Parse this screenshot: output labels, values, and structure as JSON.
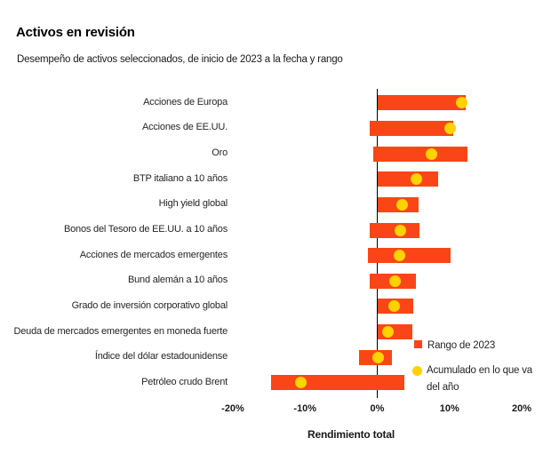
{
  "header": {
    "title": "Activos en revisión",
    "subtitle": "Desempeño de activos seleccionados, de inicio de 2023 a la fecha y rango"
  },
  "chart_data": {
    "type": "bar",
    "subtype": "horizontal-range-bars-with-ytd-markers",
    "title": "Activos en revisión",
    "xlabel": "Rendimiento total",
    "xlim": [
      -20,
      20
    ],
    "grid": false,
    "legend_position": "right-bottom",
    "x_ticks": [
      {
        "value": -20,
        "label": "-20%"
      },
      {
        "value": -10,
        "label": "-10%"
      },
      {
        "value": 0,
        "label": "0%"
      },
      {
        "value": 10,
        "label": "10%"
      },
      {
        "value": 20,
        "label": "20%"
      }
    ],
    "categories": [
      "Acciones de Europa",
      "Acciones de EE.UU.",
      "Oro",
      "BTP italiano a 10 años",
      "High yield global",
      "Bonos del Tesoro de EE.UU. a 10 años",
      "Acciones de mercados emergentes",
      "Bund alemán a 10 años",
      "Grado de inversión corporativo global",
      "Deuda de mercados emergentes en moneda fuerte",
      "Índice del dólar estadounidense",
      "Petróleo crudo Brent"
    ],
    "series": [
      {
        "name": "Rango de 2023",
        "type": "range",
        "unit": "%",
        "low": [
          0,
          -1.0,
          -0.5,
          0,
          0,
          -1.1,
          -1.3,
          -1.0,
          0,
          0,
          -2.5,
          -14.7
        ],
        "high": [
          12.2,
          10.5,
          12.5,
          8.4,
          5.7,
          5.8,
          10.1,
          5.3,
          5.0,
          4.9,
          2.0,
          3.8
        ]
      },
      {
        "name": "Acumulado en lo que va del año",
        "type": "marker",
        "unit": "%",
        "values": [
          11.7,
          10.1,
          7.5,
          5.4,
          3.4,
          3.2,
          3.1,
          2.5,
          2.3,
          1.5,
          0.1,
          -10.6
        ]
      }
    ],
    "legend": {
      "items": [
        {
          "label": "Rango de 2023",
          "marker": "square"
        },
        {
          "label_line1": "Acumulado en lo que va",
          "label_line2": "del año",
          "marker": "circle"
        }
      ]
    }
  },
  "colors": {
    "background": "#ffffff",
    "bar": "#fa4616",
    "marker": "#ffd200",
    "axis_line": "#000000",
    "text": "#1a1a1a"
  }
}
